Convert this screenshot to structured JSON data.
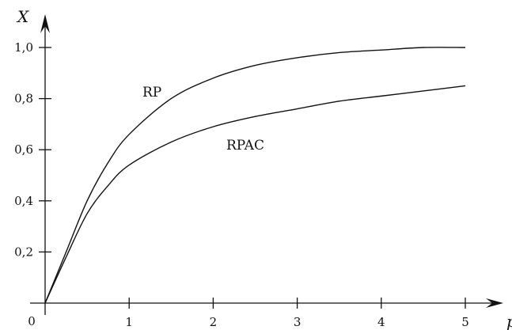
{
  "chart_data": {
    "type": "line",
    "xlabel": "p",
    "ylabel": "X",
    "origin_label": "0",
    "xlim": [
      0,
      5.3
    ],
    "ylim": [
      0,
      1.1
    ],
    "x_ticks": [
      1,
      2,
      3,
      4,
      5
    ],
    "x_tick_labels": [
      "1",
      "2",
      "3",
      "4",
      "5"
    ],
    "y_ticks": [
      0.2,
      0.4,
      0.6,
      0.8,
      1.0
    ],
    "y_tick_labels": [
      "0,2",
      "0,4",
      "0,6",
      "0,8",
      "1,0"
    ],
    "grid": false,
    "series": [
      {
        "name": "RP",
        "x": [
          0,
          0.25,
          0.5,
          0.75,
          1,
          1.5,
          2,
          2.5,
          3,
          3.5,
          4,
          4.5,
          5
        ],
        "y": [
          0,
          0.2,
          0.4,
          0.55,
          0.66,
          0.8,
          0.88,
          0.93,
          0.96,
          0.98,
          0.99,
          1.0,
          1.0
        ]
      },
      {
        "name": "RPAC",
        "x": [
          0,
          0.25,
          0.5,
          0.75,
          1,
          1.5,
          2,
          2.5,
          3,
          3.5,
          4,
          4.5,
          5
        ],
        "y": [
          0,
          0.18,
          0.35,
          0.46,
          0.54,
          0.63,
          0.69,
          0.73,
          0.76,
          0.79,
          0.81,
          0.83,
          0.85
        ]
      }
    ]
  }
}
